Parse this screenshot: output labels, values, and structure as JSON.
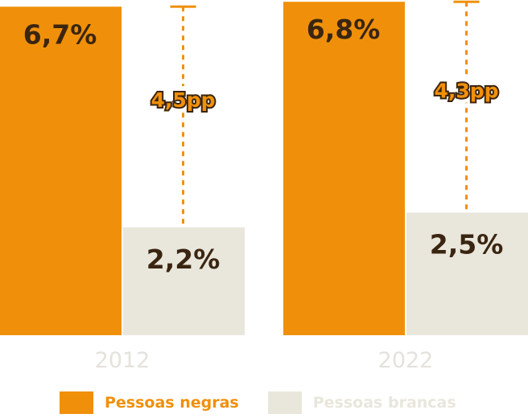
{
  "colors": {
    "negras": "#f0900a",
    "brancas": "#e9e6dc",
    "text_dark": "#3a2510",
    "axis_text": "#e4e2dc"
  },
  "legend": [
    {
      "label": "Pessoas negras",
      "color": "#f0900a"
    },
    {
      "label": "Pessoas brancas",
      "color": "#e9e6dc"
    }
  ],
  "chart_data": {
    "type": "bar",
    "categories": [
      "2012",
      "2022"
    ],
    "series": [
      {
        "name": "Pessoas negras",
        "values": [
          6.7,
          6.8
        ],
        "labels": [
          "6,7%",
          "6,8%"
        ]
      },
      {
        "name": "Pessoas brancas",
        "values": [
          2.2,
          2.5
        ],
        "labels": [
          "2,2%",
          "2,5%"
        ]
      }
    ],
    "annotations": [
      {
        "category": "2012",
        "text": "4,5pp"
      },
      {
        "category": "2022",
        "text": "4,3pp"
      }
    ],
    "title": "",
    "xlabel": "",
    "ylabel": "",
    "legend_position": "bottom",
    "grid": false
  }
}
